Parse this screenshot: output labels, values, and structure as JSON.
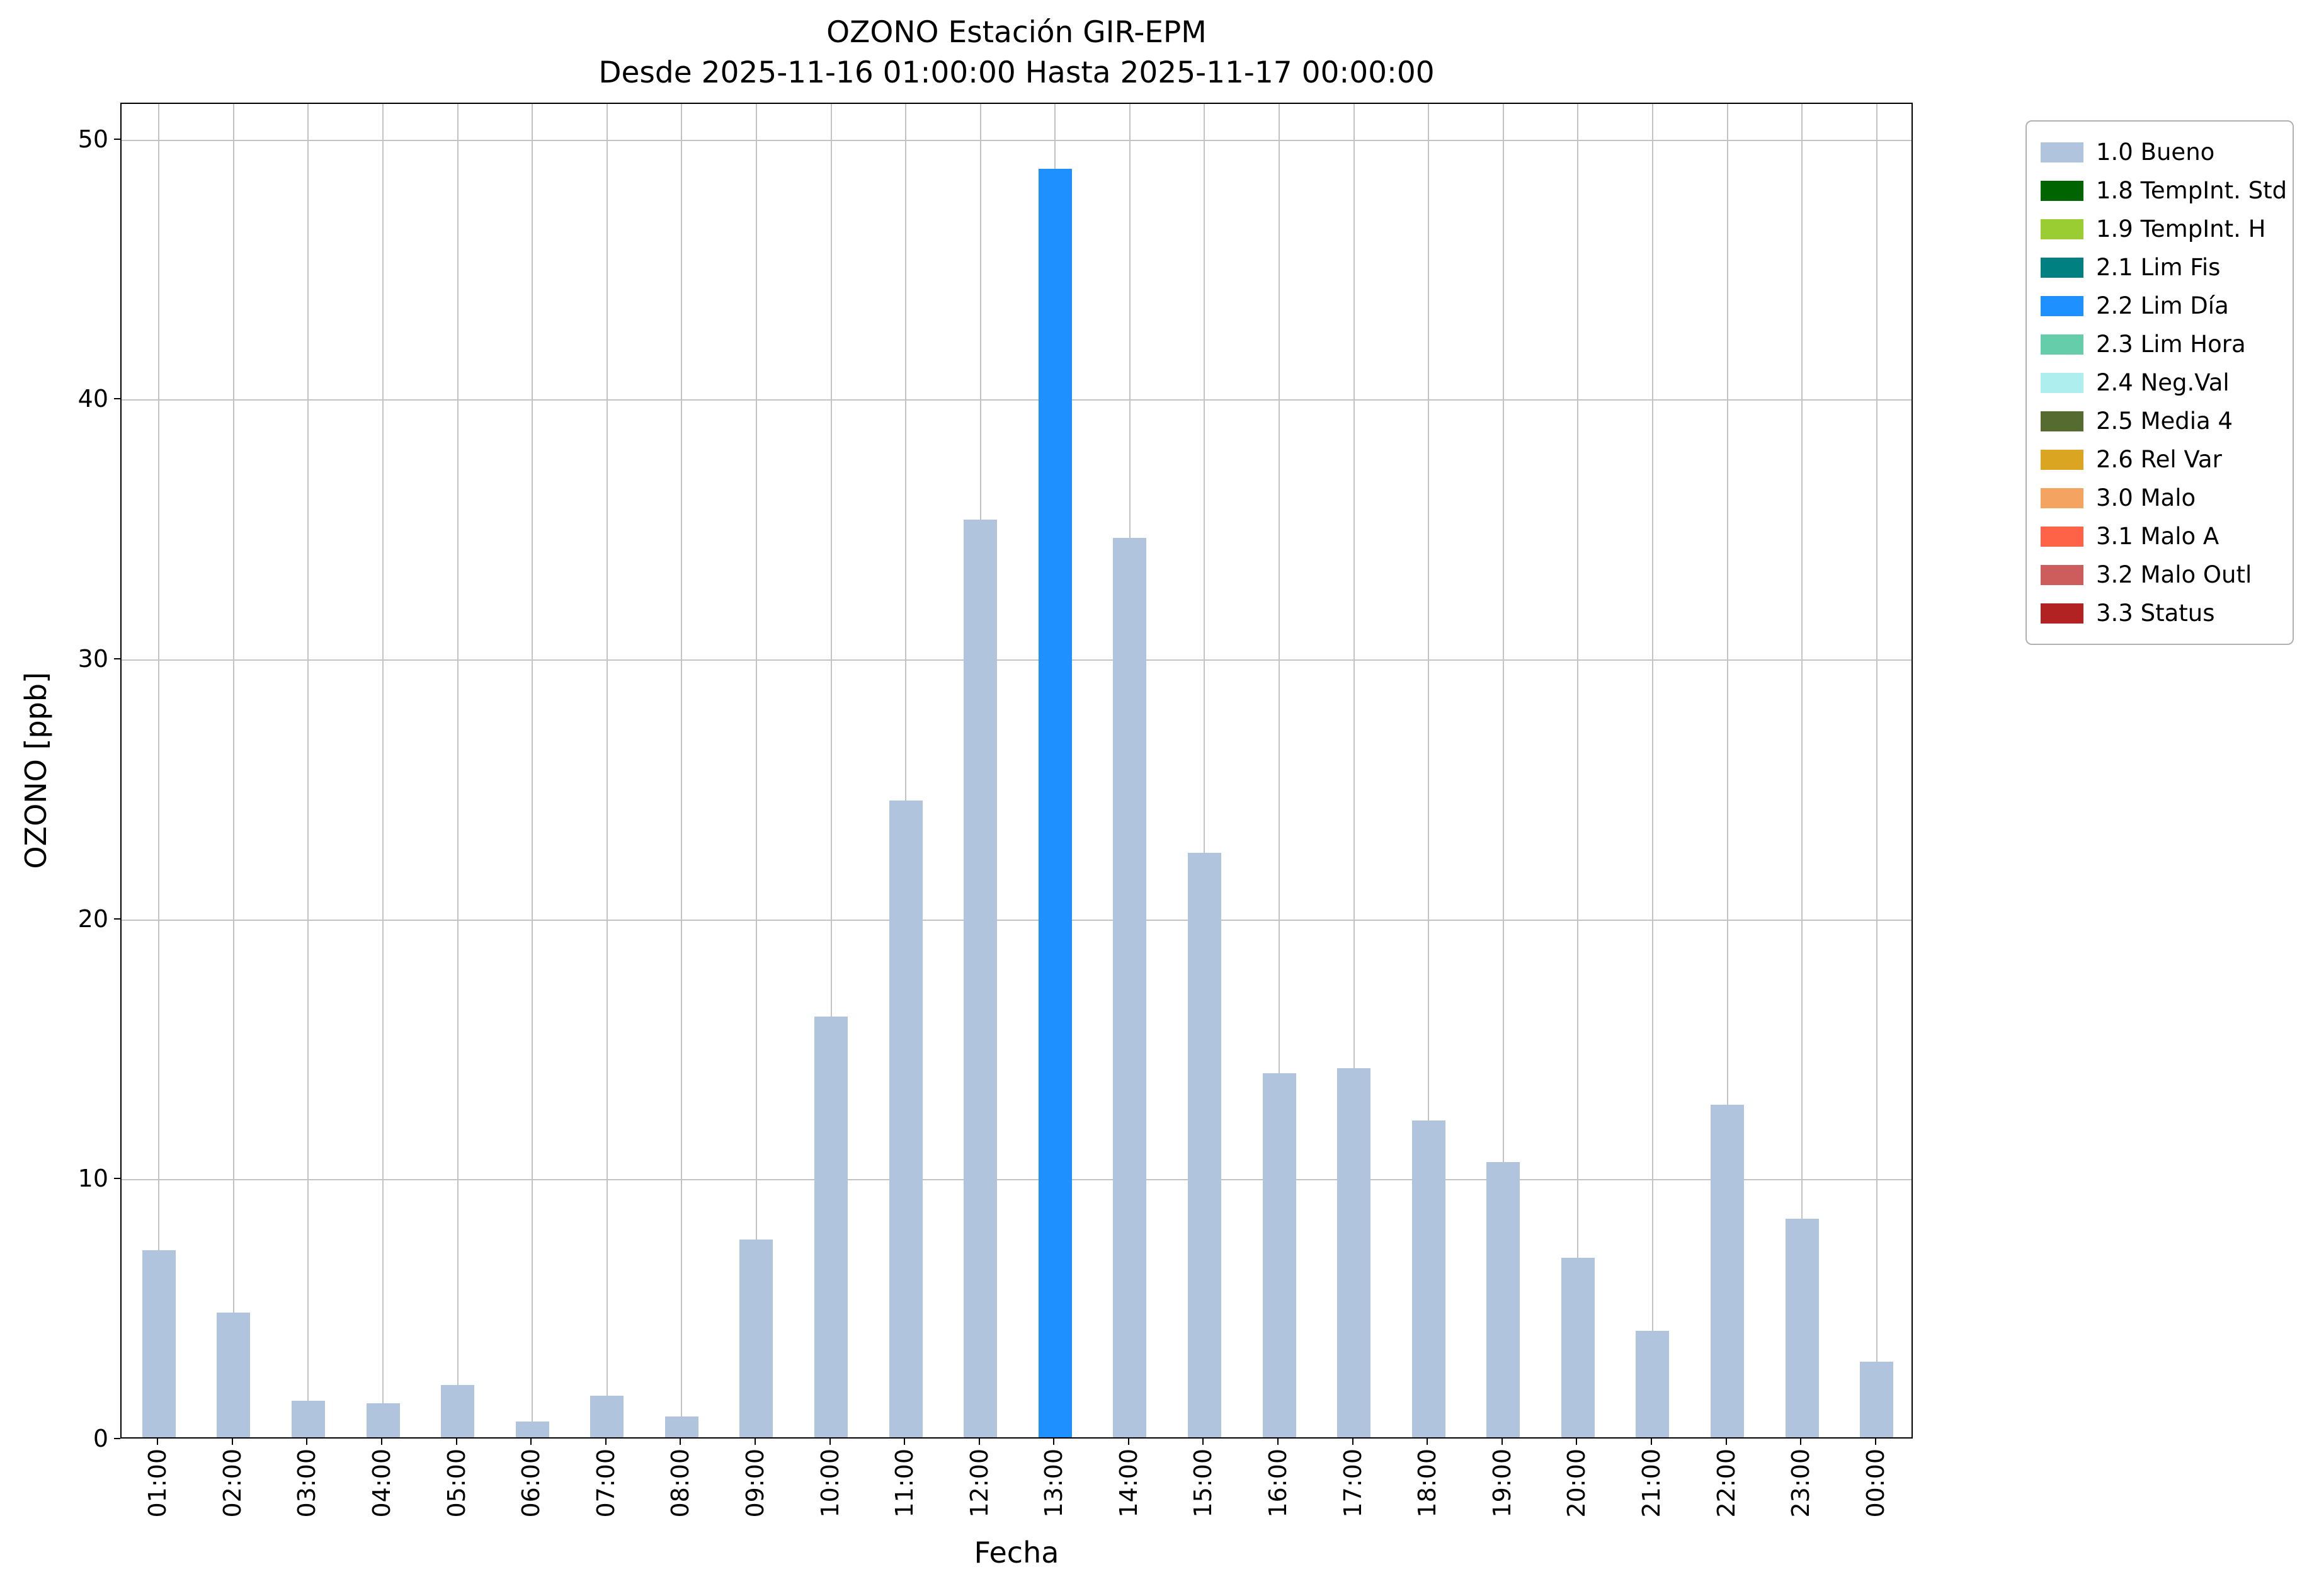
{
  "figure": {
    "background": "#ffffff"
  },
  "chart_data": {
    "type": "bar",
    "title": "OZONO Estación GIR-EPM",
    "subtitle": "Desde 2025-11-16 01:00:00 Hasta 2025-11-17 00:00:00",
    "xlabel": "Fecha",
    "ylabel": "OZONO [ppb]",
    "ylim": [
      0,
      51.4
    ],
    "yticks": [
      0,
      10,
      20,
      30,
      40,
      50
    ],
    "grid": true,
    "legend_position": "outside-upper-right",
    "categories": [
      "01:00",
      "02:00",
      "03:00",
      "04:00",
      "05:00",
      "06:00",
      "07:00",
      "08:00",
      "09:00",
      "10:00",
      "11:00",
      "12:00",
      "13:00",
      "14:00",
      "15:00",
      "16:00",
      "17:00",
      "18:00",
      "19:00",
      "20:00",
      "21:00",
      "22:00",
      "23:00",
      "00:00"
    ],
    "values": [
      7.2,
      4.8,
      1.4,
      1.3,
      2.0,
      0.6,
      1.6,
      0.8,
      7.6,
      16.2,
      24.5,
      35.3,
      48.8,
      34.6,
      22.5,
      14.0,
      14.2,
      12.2,
      10.6,
      6.9,
      4.1,
      12.8,
      8.4,
      2.9
    ],
    "bar_flags": [
      "1.0 Bueno",
      "1.0 Bueno",
      "1.0 Bueno",
      "1.0 Bueno",
      "1.0 Bueno",
      "1.0 Bueno",
      "1.0 Bueno",
      "1.0 Bueno",
      "1.0 Bueno",
      "1.0 Bueno",
      "1.0 Bueno",
      "1.0 Bueno",
      "2.2 Lim Día",
      "1.0 Bueno",
      "1.0 Bueno",
      "1.0 Bueno",
      "1.0 Bueno",
      "1.0 Bueno",
      "1.0 Bueno",
      "1.0 Bueno",
      "1.0 Bueno",
      "1.0 Bueno",
      "1.0 Bueno",
      "1.0 Bueno"
    ],
    "legend": [
      {
        "label": "1.0 Bueno",
        "color": "#b0c4de"
      },
      {
        "label": "1.8 TempInt. Std",
        "color": "#006400"
      },
      {
        "label": "1.9 TempInt. H",
        "color": "#9acd32"
      },
      {
        "label": "2.1 Lim Fis",
        "color": "#008080"
      },
      {
        "label": "2.2 Lim Día",
        "color": "#1e90ff"
      },
      {
        "label": "2.3 Lim Hora",
        "color": "#66cdaa"
      },
      {
        "label": "2.4 Neg.Val",
        "color": "#afeeee"
      },
      {
        "label": "2.5 Media 4",
        "color": "#556b2f"
      },
      {
        "label": "2.6 Rel Var",
        "color": "#daa520"
      },
      {
        "label": "3.0 Malo",
        "color": "#f4a460"
      },
      {
        "label": "3.1 Malo A",
        "color": "#ff6347"
      },
      {
        "label": "3.2 Malo Outl",
        "color": "#cd5c5c"
      },
      {
        "label": "3.3 Status",
        "color": "#b22222"
      }
    ]
  }
}
